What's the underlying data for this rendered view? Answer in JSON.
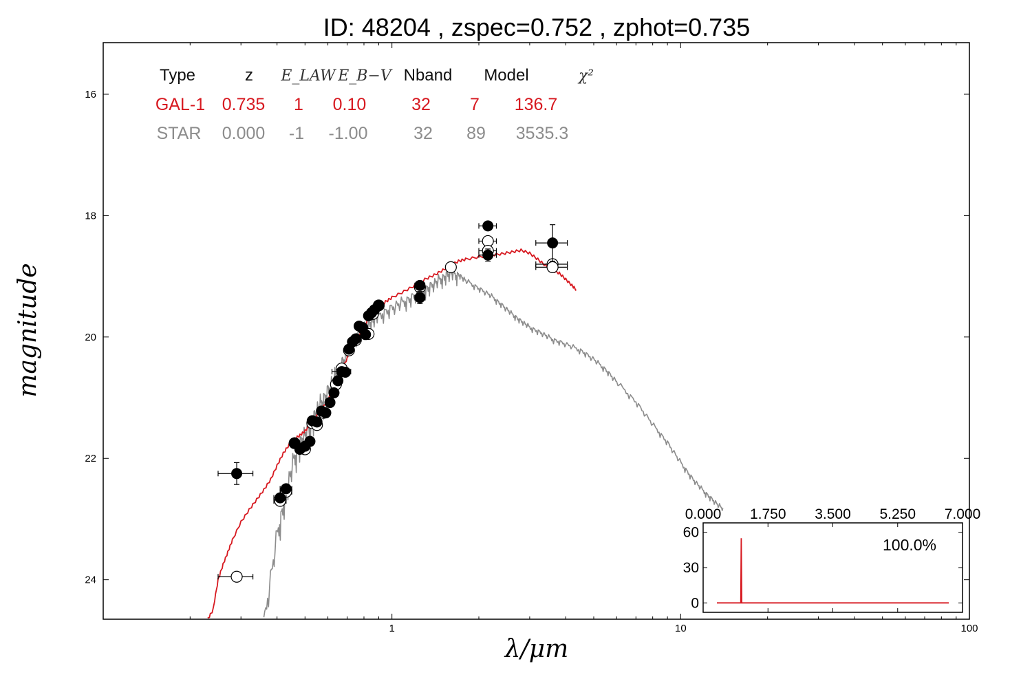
{
  "colors": {
    "galaxy": "#d71920",
    "star": "#8c8c8c",
    "points": "#000000",
    "frame": "#000000"
  },
  "chart_data": [
    {
      "type": "scatter",
      "title": "ID:  48204 , zspec=0.752 , zphot=0.735",
      "xlabel": "λ/μm",
      "ylabel": "magnitude",
      "xscale": "log",
      "xlim": [
        0.1,
        100
      ],
      "ylim": [
        24.65,
        15.15
      ],
      "yaxis_inverted": true,
      "xtick_labels": [
        "1",
        "10",
        "100"
      ],
      "ytick_labels": [
        "16",
        "18",
        "20",
        "22",
        "24"
      ],
      "table": {
        "headers": [
          "Type",
          "z",
          "E_LAW",
          "E_B−V",
          "Nband",
          "Model",
          "χ²"
        ],
        "rows": [
          {
            "name": "GAL-1",
            "values": [
              "GAL-1",
              "0.735",
              "1",
              "0.10",
              "32",
              "7",
              "136.7"
            ]
          },
          {
            "name": "STAR",
            "values": [
              "STAR",
              "0.000",
              "-1",
              "-1.00",
              "32",
              "89",
              "3535.3"
            ]
          }
        ]
      },
      "series": [
        {
          "name": "GAL-1",
          "kind": "model-line",
          "x": [
            0.23,
            0.24,
            0.25,
            0.26,
            0.27,
            0.28,
            0.3,
            0.32,
            0.34,
            0.36,
            0.38,
            0.4,
            0.42,
            0.44,
            0.46,
            0.48,
            0.5,
            0.52,
            0.55,
            0.58,
            0.61,
            0.64,
            0.67,
            0.7,
            0.74,
            0.78,
            0.82,
            0.86,
            0.9,
            0.95,
            1.0,
            1.1,
            1.2,
            1.3,
            1.4,
            1.5,
            1.6,
            1.7,
            1.8,
            2.0,
            2.2,
            2.4,
            2.6,
            2.8,
            3.0,
            3.2,
            3.4,
            3.6,
            3.8,
            4.0,
            4.2,
            4.35
          ],
          "y": [
            24.65,
            24.5,
            24.0,
            23.75,
            23.55,
            23.35,
            23.05,
            22.85,
            22.68,
            22.52,
            22.35,
            22.12,
            21.92,
            21.78,
            21.68,
            21.62,
            21.55,
            21.45,
            21.3,
            21.15,
            20.95,
            20.75,
            20.55,
            20.35,
            20.12,
            19.92,
            19.75,
            19.62,
            19.52,
            19.42,
            19.35,
            19.25,
            19.15,
            19.05,
            18.98,
            18.9,
            18.82,
            18.75,
            18.72,
            18.68,
            18.65,
            18.63,
            18.6,
            18.57,
            18.62,
            18.72,
            18.82,
            18.9,
            18.95,
            19.05,
            19.15,
            19.22
          ]
        },
        {
          "name": "STAR",
          "kind": "model-line",
          "x": [
            0.36,
            0.4,
            0.43,
            0.46,
            0.49,
            0.52,
            0.55,
            0.58,
            0.62,
            0.66,
            0.7,
            0.75,
            0.8,
            0.85,
            0.9,
            1.0,
            1.1,
            1.2,
            1.3,
            1.4,
            1.5,
            1.6,
            1.7,
            1.8,
            2.0,
            2.2,
            2.4,
            2.6,
            2.8,
            3.0,
            3.3,
            3.6,
            4.0,
            4.5,
            5.0,
            5.5,
            6.0,
            7.0,
            8.0,
            9.0,
            10,
            11,
            12,
            13,
            14
          ],
          "y": [
            24.65,
            23.2,
            22.5,
            21.9,
            21.6,
            21.4,
            21.15,
            20.95,
            20.7,
            20.45,
            20.2,
            19.98,
            19.82,
            19.7,
            19.6,
            19.48,
            19.38,
            19.28,
            19.18,
            19.08,
            18.98,
            18.9,
            18.95,
            19.05,
            19.18,
            19.3,
            19.45,
            19.6,
            19.72,
            19.82,
            19.92,
            20.02,
            20.1,
            20.2,
            20.35,
            20.52,
            20.72,
            21.05,
            21.42,
            21.72,
            22.05,
            22.32,
            22.52,
            22.68,
            22.82
          ]
        },
        {
          "name": "observed",
          "kind": "filled-points",
          "x": [
            0.29,
            0.41,
            0.43,
            0.46,
            0.48,
            0.5,
            0.52,
            0.53,
            0.55,
            0.57,
            0.59,
            0.61,
            0.63,
            0.65,
            0.67,
            0.69,
            0.71,
            0.73,
            0.75,
            0.77,
            0.79,
            0.81,
            0.83,
            0.85,
            0.87,
            0.9,
            1.25,
            1.25,
            2.15,
            2.15,
            3.6
          ],
          "y": [
            22.25,
            22.65,
            22.5,
            21.75,
            21.85,
            21.8,
            21.72,
            21.38,
            21.4,
            21.22,
            21.25,
            21.08,
            20.92,
            20.72,
            20.57,
            20.58,
            20.2,
            20.08,
            20.03,
            19.82,
            19.85,
            19.96,
            19.65,
            19.6,
            19.55,
            19.48,
            19.15,
            19.35,
            18.17,
            18.65,
            18.45
          ],
          "xerr": [
            0.04,
            0.02,
            0.02,
            0.01,
            0.01,
            0.01,
            0.01,
            0.01,
            0.01,
            0.01,
            0.01,
            0.01,
            0.01,
            0.01,
            0.05,
            0.01,
            0.01,
            0.01,
            0.01,
            0.01,
            0.01,
            0.01,
            0.01,
            0.01,
            0.01,
            0.01,
            0.05,
            0.05,
            0.15,
            0.15,
            0.45
          ],
          "yerr": [
            0.18,
            0.05,
            0.05,
            0.03,
            0.03,
            0.03,
            0.03,
            0.03,
            0.03,
            0.03,
            0.03,
            0.03,
            0.03,
            0.03,
            0.03,
            0.03,
            0.03,
            0.03,
            0.03,
            0.03,
            0.03,
            0.03,
            0.03,
            0.03,
            0.03,
            0.03,
            0.05,
            0.1,
            0.02,
            0.1,
            0.3
          ]
        },
        {
          "name": "model-magnitudes",
          "kind": "open-points",
          "x": [
            0.29,
            0.41,
            0.43,
            0.46,
            0.5,
            0.53,
            0.55,
            0.58,
            0.64,
            0.67,
            0.71,
            0.75,
            0.79,
            0.83,
            0.86,
            0.9,
            1.25,
            1.6,
            2.15,
            2.15,
            3.6,
            3.6
          ],
          "y": [
            23.95,
            22.7,
            22.55,
            21.75,
            21.85,
            21.42,
            21.45,
            21.25,
            20.78,
            20.52,
            20.22,
            20.05,
            19.85,
            19.95,
            19.62,
            19.48,
            19.18,
            18.85,
            18.42,
            18.58,
            18.8,
            18.85
          ],
          "xerr": [
            0.04,
            0.02,
            0.02,
            0,
            0,
            0,
            0,
            0,
            0,
            0,
            0,
            0,
            0,
            0,
            0,
            0,
            0,
            0,
            0.15,
            0.15,
            0.45,
            0.45
          ]
        }
      ]
    },
    {
      "type": "line",
      "name": "redshift-pdf",
      "xlim": [
        0.0,
        7.0
      ],
      "ylim": [
        -8,
        68
      ],
      "xtick_labels": [
        "0.000",
        "1.750",
        "3.500",
        "5.250",
        "7.000"
      ],
      "ytick_labels": [
        "60",
        "30",
        "0"
      ],
      "annotation": "100.0%",
      "x": [
        0.0,
        0.7,
        0.72,
        0.735,
        0.75,
        0.77,
        7.0
      ],
      "y": [
        0,
        0,
        0,
        55,
        0,
        0,
        0
      ]
    }
  ]
}
